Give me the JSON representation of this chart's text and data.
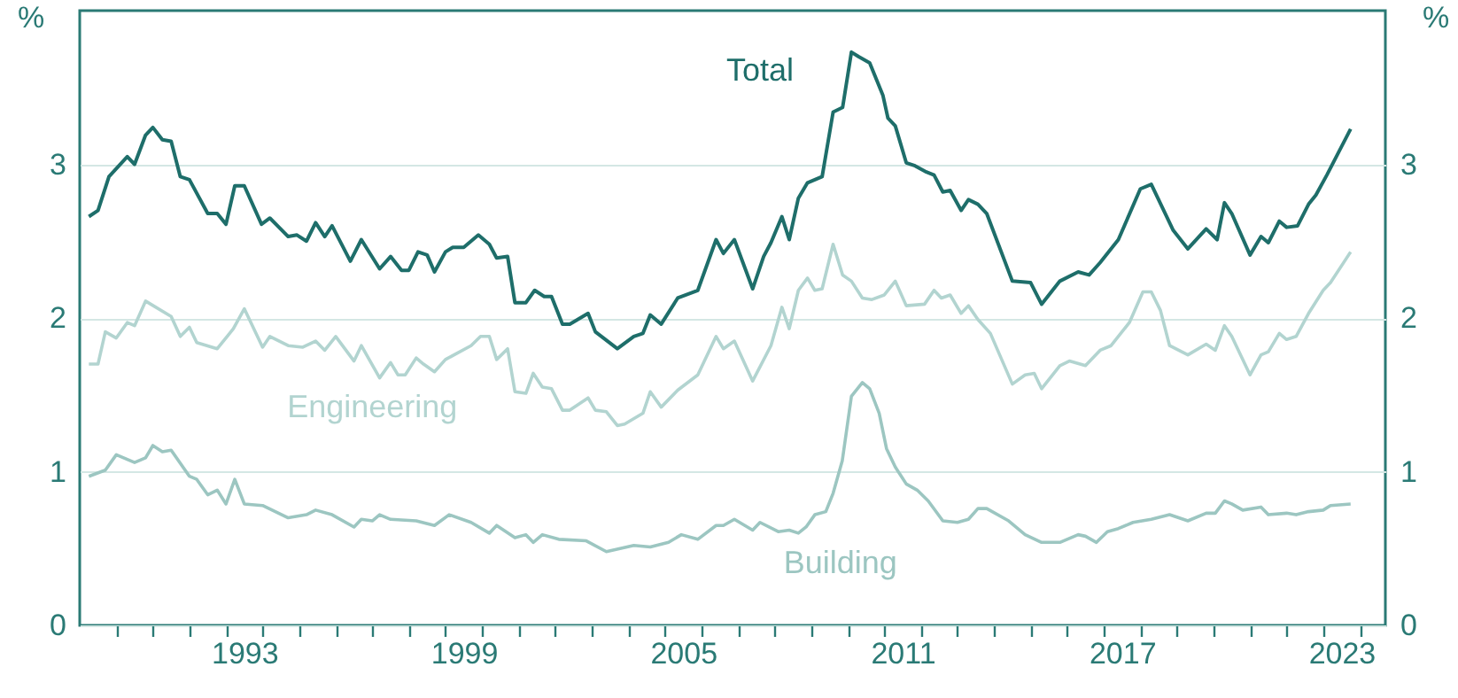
{
  "chart_data": {
    "type": "line",
    "ylabel": "%",
    "y2label": "%",
    "xlim": [
      1989,
      2024.7
    ],
    "ylim": [
      0,
      4
    ],
    "yticks": [
      0,
      1,
      2,
      3
    ],
    "y2lim": [
      0,
      4
    ],
    "y2ticks": [
      0,
      1,
      2,
      3
    ],
    "grid": "y",
    "xticks": [
      {
        "value": 1990,
        "label": null
      },
      {
        "value": 1991,
        "label": null
      },
      {
        "value": 1992,
        "label": null
      },
      {
        "value": 1993,
        "label": null
      },
      {
        "value": 1994,
        "label": null
      },
      {
        "value": 1995,
        "label": null
      },
      {
        "value": 1996,
        "label": null
      },
      {
        "value": 1997,
        "label": null
      },
      {
        "value": 1998,
        "label": null
      },
      {
        "value": 1999,
        "label": null
      },
      {
        "value": 2000,
        "label": null
      },
      {
        "value": 2001,
        "label": null
      },
      {
        "value": 2002,
        "label": null
      },
      {
        "value": 2003,
        "label": null
      },
      {
        "value": 2004,
        "label": null
      },
      {
        "value": 2005,
        "label": null
      },
      {
        "value": 2006,
        "label": null
      },
      {
        "value": 2007,
        "label": null
      },
      {
        "value": 2008,
        "label": null
      },
      {
        "value": 2009,
        "label": null
      },
      {
        "value": 2010,
        "label": null
      },
      {
        "value": 2011,
        "label": null
      },
      {
        "value": 2012,
        "label": null
      },
      {
        "value": 2013,
        "label": null
      },
      {
        "value": 2014,
        "label": null
      },
      {
        "value": 2015,
        "label": null
      },
      {
        "value": 2016,
        "label": null
      },
      {
        "value": 2017,
        "label": null
      },
      {
        "value": 2018,
        "label": null
      },
      {
        "value": 2019,
        "label": null
      },
      {
        "value": 2020,
        "label": null
      },
      {
        "value": 2021,
        "label": null
      },
      {
        "value": 2022,
        "label": null
      },
      {
        "value": 2023,
        "label": null
      },
      {
        "value": 2024,
        "label": null
      },
      {
        "value": 1993.5,
        "label": "1993"
      },
      {
        "value": 1999.5,
        "label": "1999"
      },
      {
        "value": 2005.5,
        "label": "2005"
      },
      {
        "value": 2011.5,
        "label": "2011"
      },
      {
        "value": 2017.5,
        "label": "2017"
      },
      {
        "value": 2023.5,
        "label": "2023"
      }
    ],
    "series": [
      {
        "name": "Total",
        "color": "#1e6e6a",
        "x": [
          1989.25,
          1989.5,
          1989.8,
          1990.3,
          1990.5,
          1990.8,
          1991.0,
          1991.26,
          1991.5,
          1991.75,
          1992.0,
          1992.5,
          1992.76,
          1993.0,
          1993.24,
          1993.5,
          1993.97,
          1994.2,
          1994.7,
          1994.94,
          1995.2,
          1995.45,
          1995.7,
          1995.9,
          1996.4,
          1996.7,
          1997.2,
          1997.5,
          1997.8,
          1998.0,
          1998.25,
          1998.5,
          1998.7,
          1999.0,
          1999.2,
          1999.5,
          1999.9,
          2000.2,
          2000.4,
          2000.7,
          2000.9,
          2001.2,
          2001.44,
          2001.7,
          2001.9,
          2002.2,
          2002.4,
          2002.9,
          2003.1,
          2003.7,
          2004.15,
          2004.4,
          2004.6,
          2004.9,
          2005.35,
          2005.9,
          2006.4,
          2006.6,
          2006.9,
          2007.4,
          2007.7,
          2007.9,
          2008.2,
          2008.4,
          2008.65,
          2008.9,
          2009.3,
          2009.6,
          2009.86,
          2010.1,
          2010.3,
          2010.6,
          2010.96,
          2011.1,
          2011.3,
          2011.6,
          2011.84,
          2012.15,
          2012.36,
          2012.6,
          2012.8,
          2013.1,
          2013.3,
          2013.56,
          2013.8,
          2014.5,
          2015.0,
          2015.3,
          2015.8,
          2016.3,
          2016.6,
          2016.9,
          2017.4,
          2018.0,
          2018.3,
          2018.9,
          2019.3,
          2019.8,
          2020.1,
          2020.3,
          2020.5,
          2021.0,
          2021.3,
          2021.5,
          2021.8,
          2022.0,
          2022.3,
          2022.6,
          2022.8,
          2023.1,
          2023.75
        ],
        "values": [
          2.66,
          2.7,
          2.92,
          3.05,
          3.0,
          3.19,
          3.24,
          3.16,
          3.15,
          2.92,
          2.9,
          2.68,
          2.68,
          2.61,
          2.86,
          2.86,
          2.61,
          2.65,
          2.53,
          2.54,
          2.5,
          2.62,
          2.53,
          2.6,
          2.37,
          2.51,
          2.32,
          2.4,
          2.31,
          2.31,
          2.43,
          2.41,
          2.3,
          2.43,
          2.46,
          2.46,
          2.54,
          2.48,
          2.39,
          2.4,
          2.1,
          2.1,
          2.18,
          2.14,
          2.14,
          1.96,
          1.96,
          2.03,
          1.91,
          1.8,
          1.88,
          1.9,
          2.02,
          1.96,
          2.13,
          2.18,
          2.51,
          2.42,
          2.51,
          2.19,
          2.4,
          2.49,
          2.66,
          2.51,
          2.78,
          2.88,
          2.92,
          3.34,
          3.37,
          3.73,
          3.7,
          3.66,
          3.45,
          3.3,
          3.25,
          3.01,
          2.99,
          2.95,
          2.93,
          2.82,
          2.83,
          2.7,
          2.77,
          2.74,
          2.68,
          2.24,
          2.23,
          2.09,
          2.24,
          2.3,
          2.28,
          2.36,
          2.51,
          2.84,
          2.87,
          2.57,
          2.45,
          2.58,
          2.51,
          2.75,
          2.68,
          2.41,
          2.53,
          2.49,
          2.63,
          2.59,
          2.6,
          2.74,
          2.8,
          2.93,
          3.23
        ]
      },
      {
        "name": "Engineering",
        "color": "#b2d4d0",
        "x": [
          1989.25,
          1989.5,
          1989.7,
          1990.0,
          1990.3,
          1990.5,
          1990.8,
          1991.5,
          1991.75,
          1992.0,
          1992.2,
          1992.76,
          1993.2,
          1993.5,
          1994.0,
          1994.2,
          1994.7,
          1995.1,
          1995.45,
          1995.7,
          1996.0,
          1996.5,
          1996.7,
          1997.2,
          1997.5,
          1997.7,
          1997.9,
          1998.2,
          1998.4,
          1998.7,
          1999.0,
          1999.7,
          1999.96,
          2000.2,
          2000.4,
          2000.7,
          2000.9,
          2001.2,
          2001.4,
          2001.65,
          2001.9,
          2002.2,
          2002.4,
          2002.9,
          2003.1,
          2003.4,
          2003.7,
          2003.9,
          2004.4,
          2004.6,
          2004.9,
          2005.35,
          2005.9,
          2006.4,
          2006.6,
          2006.9,
          2007.4,
          2007.9,
          2008.2,
          2008.4,
          2008.65,
          2008.9,
          2009.1,
          2009.3,
          2009.6,
          2009.86,
          2010.1,
          2010.4,
          2010.66,
          2011.0,
          2011.3,
          2011.6,
          2012.1,
          2012.36,
          2012.56,
          2012.8,
          2013.1,
          2013.3,
          2013.56,
          2013.9,
          2014.5,
          2014.85,
          2015.1,
          2015.3,
          2015.8,
          2016.06,
          2016.5,
          2016.9,
          2017.2,
          2017.7,
          2018.07,
          2018.3,
          2018.55,
          2018.8,
          2019.3,
          2019.8,
          2020.05,
          2020.3,
          2020.5,
          2021.0,
          2021.3,
          2021.5,
          2021.8,
          2022.0,
          2022.26,
          2022.6,
          2023.0,
          2023.2,
          2023.75
        ],
        "values": [
          1.7,
          1.7,
          1.91,
          1.87,
          1.97,
          1.95,
          2.11,
          2.01,
          1.88,
          1.94,
          1.84,
          1.8,
          1.93,
          2.06,
          1.81,
          1.88,
          1.82,
          1.81,
          1.85,
          1.79,
          1.88,
          1.72,
          1.82,
          1.61,
          1.71,
          1.63,
          1.63,
          1.74,
          1.7,
          1.65,
          1.73,
          1.82,
          1.88,
          1.88,
          1.73,
          1.8,
          1.52,
          1.51,
          1.64,
          1.55,
          1.54,
          1.4,
          1.4,
          1.48,
          1.4,
          1.39,
          1.3,
          1.31,
          1.38,
          1.52,
          1.42,
          1.53,
          1.63,
          1.88,
          1.8,
          1.85,
          1.59,
          1.82,
          2.07,
          1.93,
          2.18,
          2.26,
          2.18,
          2.19,
          2.48,
          2.28,
          2.24,
          2.13,
          2.12,
          2.15,
          2.24,
          2.08,
          2.09,
          2.18,
          2.13,
          2.15,
          2.03,
          2.08,
          1.99,
          1.9,
          1.57,
          1.63,
          1.64,
          1.54,
          1.69,
          1.72,
          1.69,
          1.79,
          1.82,
          1.97,
          2.17,
          2.17,
          2.05,
          1.82,
          1.76,
          1.83,
          1.79,
          1.95,
          1.88,
          1.63,
          1.76,
          1.78,
          1.9,
          1.86,
          1.88,
          2.03,
          2.18,
          2.23,
          2.43
        ]
      },
      {
        "name": "Building",
        "color": "#9cc6c1",
        "x": [
          1989.25,
          1989.7,
          1990.0,
          1990.5,
          1990.8,
          1991.0,
          1991.26,
          1991.5,
          1992.0,
          1992.2,
          1992.5,
          1992.76,
          1993.0,
          1993.24,
          1993.5,
          1994.0,
          1994.7,
          1995.2,
          1995.45,
          1995.9,
          1996.5,
          1996.7,
          1997.0,
          1997.2,
          1997.5,
          1998.2,
          1998.7,
          1999.1,
          1999.7,
          2000.2,
          2000.4,
          2000.9,
          2001.2,
          2001.4,
          2001.65,
          2002.1,
          2002.85,
          2003.4,
          2004.15,
          2004.6,
          2005.1,
          2005.45,
          2005.9,
          2006.4,
          2006.6,
          2006.9,
          2007.4,
          2007.6,
          2008.1,
          2008.4,
          2008.65,
          2008.86,
          2009.1,
          2009.4,
          2009.6,
          2009.85,
          2010.1,
          2010.4,
          2010.6,
          2010.86,
          2011.06,
          2011.3,
          2011.6,
          2011.9,
          2012.2,
          2012.6,
          2013.0,
          2013.3,
          2013.56,
          2013.8,
          2014.4,
          2014.85,
          2015.3,
          2015.8,
          2016.3,
          2016.5,
          2016.8,
          2017.1,
          2017.4,
          2017.8,
          2018.3,
          2018.8,
          2019.3,
          2019.8,
          2020.05,
          2020.3,
          2020.5,
          2020.8,
          2021.3,
          2021.5,
          2022.0,
          2022.26,
          2022.6,
          2023.0,
          2023.2,
          2023.75
        ],
        "values": [
          0.97,
          1.01,
          1.11,
          1.06,
          1.09,
          1.17,
          1.13,
          1.14,
          0.97,
          0.95,
          0.85,
          0.88,
          0.79,
          0.95,
          0.79,
          0.78,
          0.7,
          0.72,
          0.75,
          0.72,
          0.64,
          0.69,
          0.68,
          0.72,
          0.69,
          0.68,
          0.65,
          0.72,
          0.67,
          0.6,
          0.65,
          0.57,
          0.59,
          0.54,
          0.59,
          0.56,
          0.55,
          0.48,
          0.52,
          0.51,
          0.54,
          0.59,
          0.56,
          0.65,
          0.65,
          0.69,
          0.62,
          0.67,
          0.61,
          0.62,
          0.6,
          0.64,
          0.72,
          0.74,
          0.86,
          1.07,
          1.49,
          1.58,
          1.54,
          1.38,
          1.15,
          1.03,
          0.92,
          0.88,
          0.81,
          0.68,
          0.67,
          0.69,
          0.76,
          0.76,
          0.68,
          0.59,
          0.54,
          0.54,
          0.59,
          0.58,
          0.54,
          0.61,
          0.63,
          0.67,
          0.69,
          0.72,
          0.68,
          0.73,
          0.73,
          0.81,
          0.79,
          0.75,
          0.77,
          0.72,
          0.73,
          0.72,
          0.74,
          0.75,
          0.78,
          0.79
        ]
      }
    ]
  }
}
